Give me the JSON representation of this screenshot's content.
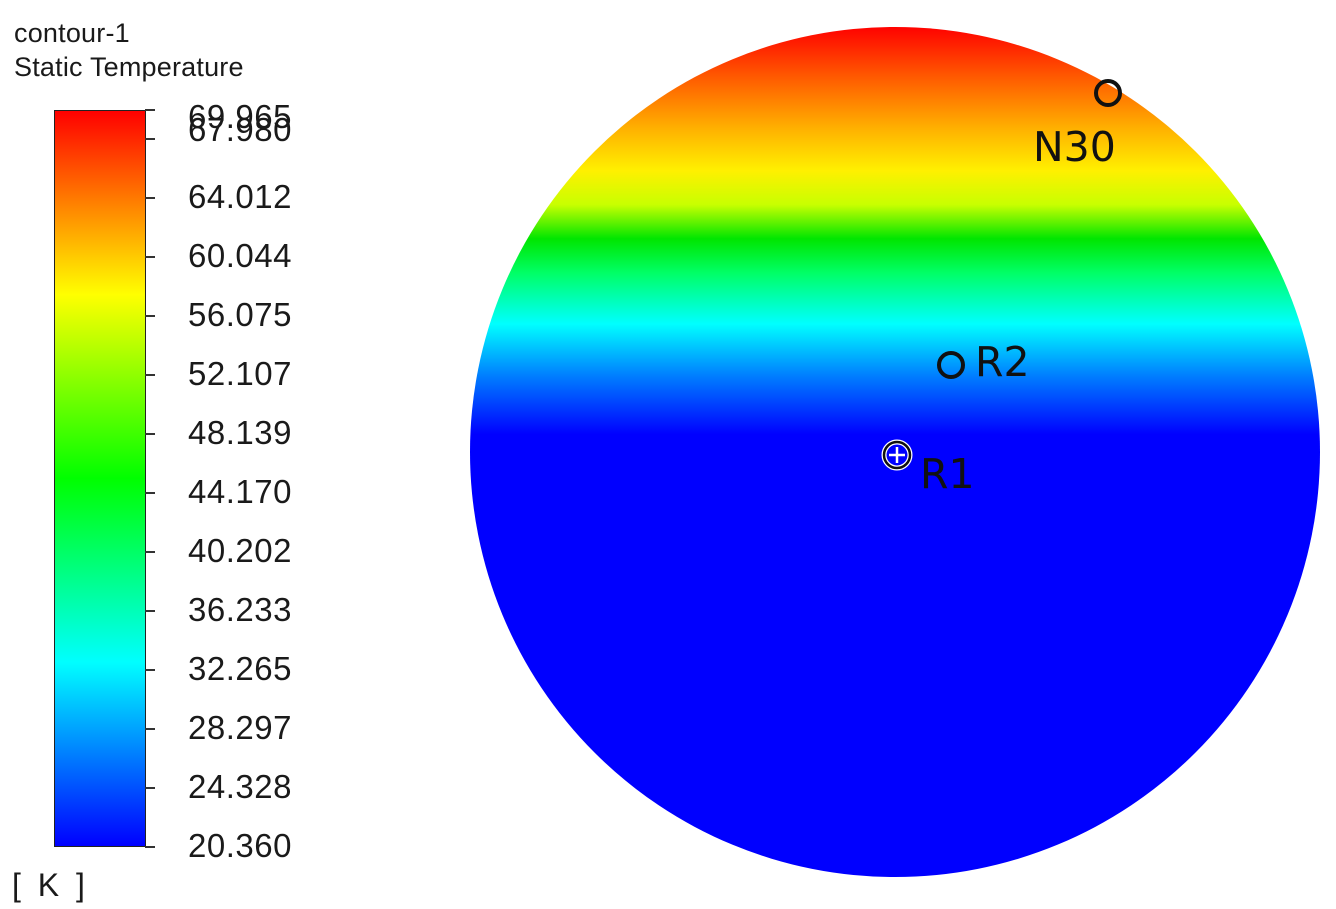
{
  "legend": {
    "line1": "contour-1",
    "line2": "Static Temperature",
    "unit": "[ K ]",
    "values": [
      "69.965",
      "67.980",
      "64.012",
      "60.044",
      "56.075",
      "52.107",
      "48.139",
      "44.170",
      "40.202",
      "36.233",
      "32.265",
      "28.297",
      "24.328",
      "20.360"
    ],
    "min": 20.36,
    "max": 69.965
  },
  "colormap": [
    "#0000ff",
    "#00ffff",
    "#00ff00",
    "#ffff00",
    "#ff0000"
  ],
  "points": [
    {
      "id": "N30",
      "marker": "circle"
    },
    {
      "id": "R2",
      "marker": "circle"
    },
    {
      "id": "R1",
      "marker": "circle-plus"
    }
  ]
}
